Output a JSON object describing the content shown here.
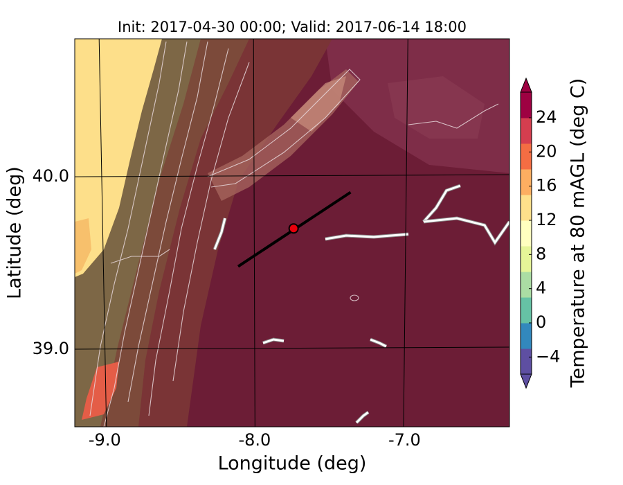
{
  "map": {
    "title": "Init: 2017-04-30 00:00; Valid: 2017-06-14 18:00",
    "x_label": "Longitude (deg)",
    "y_label": "Latitude (deg)",
    "xlim": [
      -9.2,
      -6.3
    ],
    "ylim": [
      38.55,
      40.8
    ],
    "xticks": [
      {
        "value": -9,
        "label": "-9.0"
      },
      {
        "value": -8,
        "label": "-8.0"
      },
      {
        "value": -7,
        "label": "-7.0"
      }
    ],
    "yticks": [
      {
        "value": 39,
        "label": "39.0"
      },
      {
        "value": 40,
        "label": "40.0"
      }
    ],
    "cross_section": {
      "lon": [
        -8.11,
        -7.36
      ],
      "lat": [
        39.48,
        39.91
      ],
      "color": "#000000"
    },
    "site": {
      "lon": -7.74,
      "lat": 39.7,
      "color": "#e8000b"
    },
    "colorbar": {
      "label": "Temperature at 80 mAGL (deg C)",
      "lim": [
        -6,
        27
      ],
      "ticks": [
        {
          "value": -4,
          "label": "−4"
        },
        0,
        4,
        8,
        12,
        16,
        20,
        24
      ],
      "colors": [
        "#5e4fa2",
        "#3288bd",
        "#66c2a5",
        "#abdda4",
        "#e6f598",
        "#ffffbf",
        "#fee08b",
        "#fdae61",
        "#f46d43",
        "#d53e4f",
        "#9e0142"
      ]
    }
  }
}
